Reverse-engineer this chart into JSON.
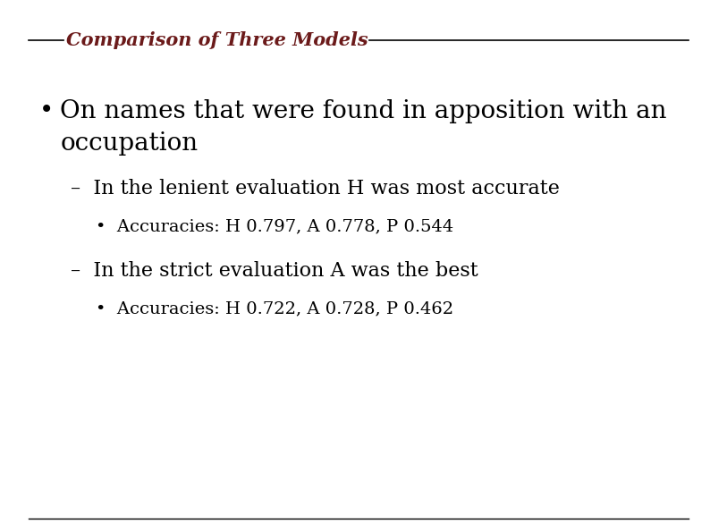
{
  "title": "Comparison of Three Models",
  "title_color": "#6B1A1A",
  "title_fontsize": 15,
  "title_style": "italic",
  "title_weight": "bold",
  "bg_color": "#FFFFFF",
  "line_color": "#000000",
  "text_color": "#000000",
  "bullet1_line1": "On names that were found in apposition with an",
  "bullet1_line2": "occupation",
  "sub1": "In the lenient evaluation H was most accurate",
  "subsub1": "Accuracies: H 0.797, A 0.778, P 0.544",
  "sub2": "In the strict evaluation A was the best",
  "subsub2": "Accuracies: H 0.722, A 0.728, P 0.462",
  "bullet_fontsize": 20,
  "sub_fontsize": 16,
  "subsub_fontsize": 14
}
